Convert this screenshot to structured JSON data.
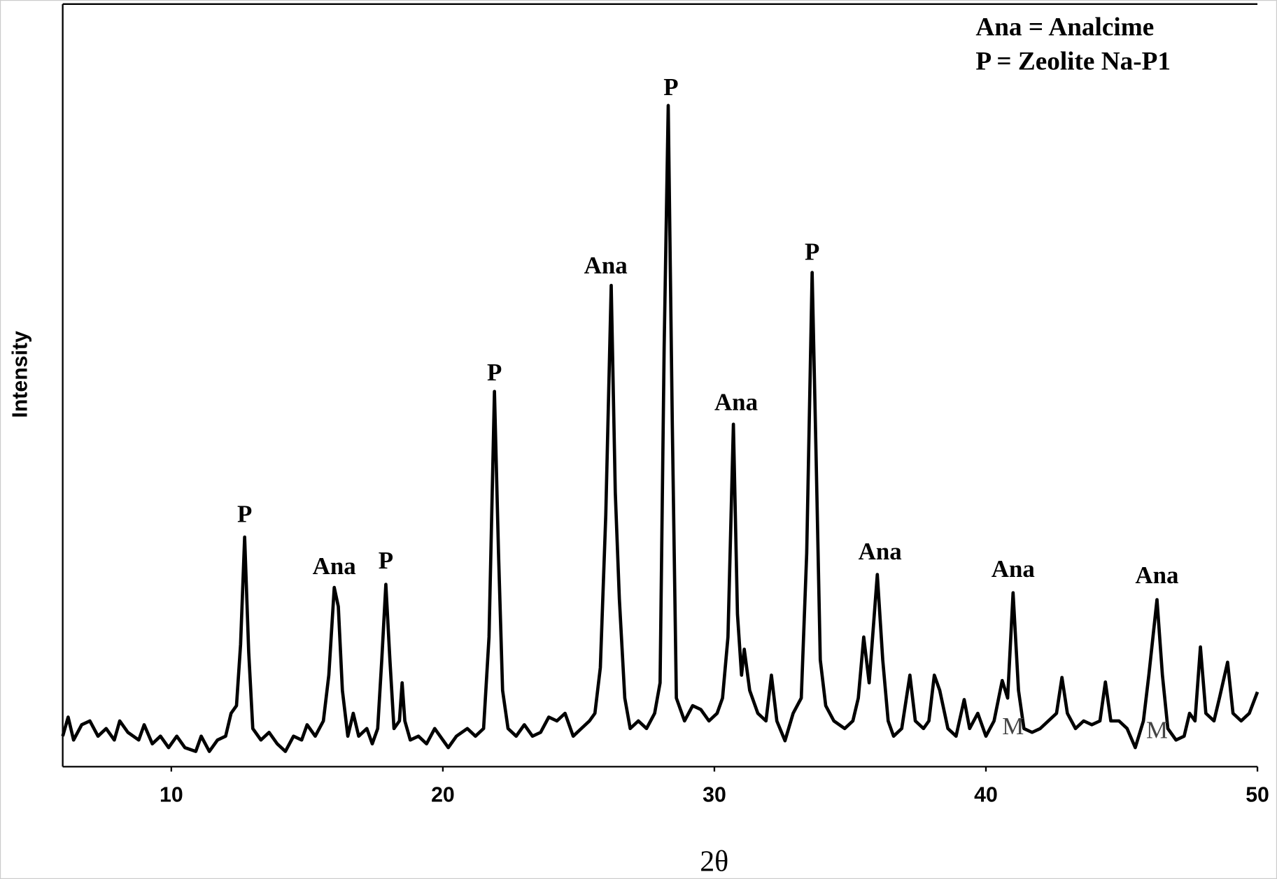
{
  "chart_data": {
    "type": "line",
    "x_label": "2θ",
    "y_label": "Intensity",
    "key": [
      "Ana = Analcime",
      "P = Zeolite Na-P1"
    ],
    "color": "#000000",
    "xlim": [
      6,
      50
    ],
    "xticks": [
      10,
      20,
      30,
      40,
      50
    ],
    "ylim": [
      0,
      100
    ],
    "x": [
      6,
      6.2,
      6.4,
      6.7,
      7.0,
      7.3,
      7.6,
      7.9,
      8.1,
      8.4,
      8.8,
      9.0,
      9.3,
      9.6,
      9.9,
      10.2,
      10.5,
      10.9,
      11.1,
      11.4,
      11.7,
      12.0,
      12.2,
      12.4,
      12.55,
      12.7,
      12.85,
      13.0,
      13.3,
      13.6,
      13.9,
      14.2,
      14.5,
      14.8,
      15.0,
      15.3,
      15.6,
      15.8,
      16.0,
      16.15,
      16.3,
      16.5,
      16.7,
      16.9,
      17.2,
      17.4,
      17.6,
      17.75,
      17.9,
      18.05,
      18.2,
      18.4,
      18.5,
      18.6,
      18.8,
      19.1,
      19.4,
      19.7,
      20.0,
      20.2,
      20.5,
      20.9,
      21.2,
      21.5,
      21.7,
      21.9,
      22.05,
      22.2,
      22.4,
      22.7,
      23.0,
      23.3,
      23.6,
      23.9,
      24.2,
      24.5,
      24.8,
      25.1,
      25.4,
      25.6,
      25.8,
      26.0,
      26.2,
      26.35,
      26.5,
      26.7,
      26.9,
      27.2,
      27.5,
      27.8,
      28.0,
      28.15,
      28.3,
      28.45,
      28.6,
      28.9,
      29.2,
      29.5,
      29.8,
      30.1,
      30.3,
      30.5,
      30.7,
      30.85,
      31.0,
      31.1,
      31.3,
      31.6,
      31.9,
      32.1,
      32.3,
      32.6,
      32.9,
      33.2,
      33.4,
      33.6,
      33.75,
      33.9,
      34.1,
      34.4,
      34.8,
      35.1,
      35.3,
      35.5,
      35.7,
      36.0,
      36.2,
      36.4,
      36.6,
      36.9,
      37.2,
      37.4,
      37.7,
      37.9,
      38.1,
      38.3,
      38.6,
      38.9,
      39.2,
      39.4,
      39.7,
      40.0,
      40.3,
      40.6,
      40.8,
      41.0,
      41.2,
      41.4,
      41.7,
      42.0,
      42.3,
      42.6,
      42.8,
      43.0,
      43.3,
      43.6,
      43.9,
      44.2,
      44.4,
      44.6,
      44.9,
      45.2,
      45.5,
      45.8,
      46.0,
      46.3,
      46.5,
      46.7,
      47.0,
      47.3,
      47.5,
      47.7,
      47.9,
      48.1,
      48.4,
      48.6,
      48.9,
      49.1,
      49.4,
      49.7,
      50.0
    ],
    "values": [
      4,
      6.5,
      3.5,
      5.5,
      6,
      4,
      5,
      3.5,
      6,
      4.5,
      3.5,
      5.5,
      3,
      4,
      2.5,
      4,
      2.5,
      2,
      4,
      2,
      3.5,
      4,
      7,
      8,
      16,
      30.1,
      15,
      5,
      3.5,
      4.5,
      3,
      2,
      4,
      3.5,
      5.5,
      4,
      6,
      12,
      23.5,
      21,
      10,
      4,
      7,
      4,
      5,
      3,
      5,
      14,
      23.9,
      14,
      5,
      6,
      11,
      6,
      3.5,
      4,
      3,
      5,
      3.5,
      2.5,
      4,
      5,
      4,
      5,
      17,
      49.2,
      28,
      10,
      5,
      4,
      5.5,
      4,
      4.5,
      6.5,
      6,
      7,
      4,
      5,
      6,
      7,
      13,
      33,
      63.1,
      36,
      22,
      9,
      5,
      6,
      5,
      7,
      11,
      55,
      86.7,
      45,
      9,
      6,
      8,
      7.5,
      6,
      7,
      9,
      17,
      44.9,
      20,
      12,
      15.4,
      10,
      7,
      6,
      12,
      6,
      3.4,
      7,
      9,
      28,
      64.8,
      40,
      14,
      8,
      6,
      5,
      6,
      9,
      17,
      11,
      25.2,
      14,
      6,
      4,
      5,
      12,
      6,
      5,
      6,
      12,
      10,
      5,
      4,
      8.8,
      5,
      7,
      4,
      6,
      11.3,
      9,
      22.8,
      10,
      5,
      4.5,
      5,
      6,
      7,
      11.7,
      7,
      5,
      6,
      5.5,
      6,
      11.1,
      6,
      6,
      5,
      2.5,
      6,
      12,
      21.9,
      12,
      5,
      3.5,
      4,
      7,
      6,
      15.7,
      7,
      6,
      9,
      13.7,
      7,
      6,
      7,
      9.8
    ],
    "annotations": [
      {
        "text": "P",
        "x": 12.7,
        "y": 32.8
      },
      {
        "text": "Ana",
        "x": 16.0,
        "y": 26.0
      },
      {
        "text": "P",
        "x": 17.9,
        "y": 26.7
      },
      {
        "text": "P",
        "x": 21.9,
        "y": 51.4
      },
      {
        "text": "Ana",
        "x": 26.0,
        "y": 65.4
      },
      {
        "text": "P",
        "x": 28.4,
        "y": 88.8
      },
      {
        "text": "Ana",
        "x": 30.8,
        "y": 47.5
      },
      {
        "text": "P",
        "x": 33.6,
        "y": 67.2
      },
      {
        "text": "Ana",
        "x": 36.1,
        "y": 27.9
      },
      {
        "text": "Ana",
        "x": 41.0,
        "y": 25.6
      },
      {
        "text": "Ana",
        "x": 46.3,
        "y": 24.8
      },
      {
        "text": "M",
        "x": 41.0,
        "y": 5.0
      },
      {
        "text": "M",
        "x": 46.3,
        "y": 4.5
      }
    ]
  }
}
